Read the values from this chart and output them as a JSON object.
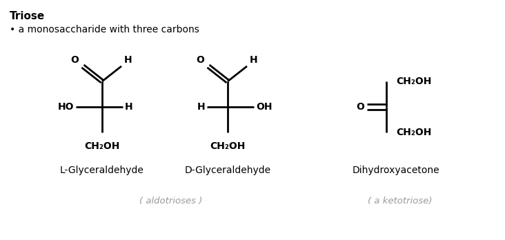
{
  "title": "Triose",
  "bullet": "• a monosaccharide with three carbons",
  "bg_color": "#ffffff",
  "text_color": "#000000",
  "gray_color": "#999999",
  "label1": "L-Glyceraldehyde",
  "label2": "D-Glyceraldehyde",
  "label3": "Dihydroxyacetone",
  "sublabel1": "( aldotrioses )",
  "sublabel2": "( a ketotriose)",
  "fig_width": 7.32,
  "fig_height": 3.48,
  "dpi": 100
}
